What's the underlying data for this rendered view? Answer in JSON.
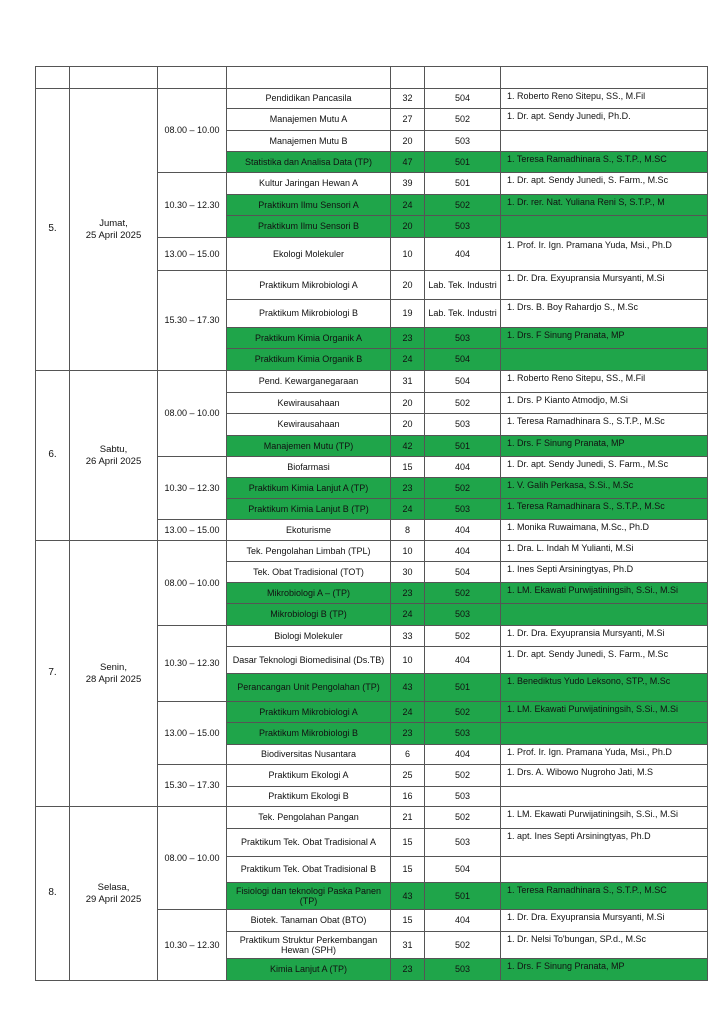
{
  "highlight_color": "#1fa54a",
  "schedule": [
    {
      "no": "5.",
      "day": "Jumat,",
      "date": "25 April 2025",
      "slots": [
        {
          "time": "08.00 – 10.00",
          "courses": [
            {
              "name": "Pendidikan Pancasila",
              "students": "32",
              "room": "504",
              "lecturer": "1. Roberto Reno Sitepu, SS., M.Fil",
              "highlight": false
            },
            {
              "name": "Manajemen Mutu A",
              "students": "27",
              "room": "502",
              "lecturer": "1. Dr. apt. Sendy Junedi, Ph.D.",
              "highlight": false
            },
            {
              "name": "Manajemen Mutu B",
              "students": "20",
              "room": "503",
              "lecturer": "",
              "highlight": false
            },
            {
              "name": "Statistika dan Analisa Data (TP)",
              "students": "47",
              "room": "501",
              "lecturer": "1. Teresa Ramadhinara S., S.T.P., M.SC",
              "highlight": true
            }
          ]
        },
        {
          "time": "10.30 – 12.30",
          "courses": [
            {
              "name": "Kultur Jaringan Hewan A",
              "students": "39",
              "room": "501",
              "lecturer": "1. Dr. apt. Sendy Junedi, S. Farm., M.Sc",
              "highlight": false
            },
            {
              "name": "Praktikum Ilmu Sensori A",
              "students": "24",
              "room": "502",
              "lecturer": "1. Dr. rer. Nat. Yuliana Reni S, S.T.P., M",
              "highlight": true
            },
            {
              "name": "Praktikum Ilmu Sensori B",
              "students": "20",
              "room": "503",
              "lecturer": "",
              "highlight": true
            }
          ]
        },
        {
          "time": "13.00 – 15.00",
          "courses": [
            {
              "name": "Ekologi Molekuler",
              "students": "10",
              "room": "404",
              "lecturer": "1. Prof. Ir. Ign. Pramana Yuda, Msi., Ph.D",
              "highlight": false
            }
          ]
        },
        {
          "time": "15.30 – 17.30",
          "courses": [
            {
              "name": "Praktikum Mikrobiologi A",
              "students": "20",
              "room": "Lab. Tek. Industri",
              "lecturer": "1. Dr. Dra. Exyupransia Mursyanti, M.Si",
              "highlight": false
            },
            {
              "name": "Praktikum Mikrobiologi B",
              "students": "19",
              "room": "Lab. Tek. Industri",
              "lecturer": "1. Drs. B. Boy Rahardjo S., M.Sc",
              "highlight": false
            },
            {
              "name": "Praktikum Kimia Organik A",
              "students": "23",
              "room": "503",
              "lecturer": "1. Drs. F Sinung Pranata, MP",
              "highlight": true
            },
            {
              "name": "Praktikum Kimia Organik B",
              "students": "24",
              "room": "504",
              "lecturer": "",
              "highlight": true
            }
          ]
        }
      ]
    },
    {
      "no": "6.",
      "day": "Sabtu,",
      "date": "26 April 2025",
      "slots": [
        {
          "time": "08.00 – 10.00",
          "courses": [
            {
              "name": "Pend. Kewarganegaraan",
              "students": "31",
              "room": "504",
              "lecturer": "1. Roberto Reno Sitepu, SS., M.Fil",
              "highlight": false
            },
            {
              "name": "Kewirausahaan",
              "students": "20",
              "room": "502",
              "lecturer": "1. Drs. P Kianto Atmodjo, M.Si",
              "highlight": false
            },
            {
              "name": "Kewirausahaan",
              "students": "20",
              "room": "503",
              "lecturer": "1. Teresa Ramadhinara S., S.T.P.,  M.Sc",
              "highlight": false
            },
            {
              "name": "Manajemen Mutu (TP)",
              "students": "42",
              "room": "501",
              "lecturer": "1. Drs. F Sinung Pranata, MP",
              "highlight": true
            }
          ]
        },
        {
          "time": "10.30 – 12.30",
          "courses": [
            {
              "name": "Biofarmasi",
              "students": "15",
              "room": "404",
              "lecturer": "1. Dr. apt. Sendy Junedi, S. Farm., M.Sc",
              "highlight": false
            },
            {
              "name": "Praktikum Kimia Lanjut A (TP)",
              "students": "23",
              "room": "502",
              "lecturer": "1. V. Galih Perkasa, S.Si., M.Sc",
              "highlight": true
            },
            {
              "name": "Praktikum Kimia Lanjut B (TP)",
              "students": "24",
              "room": "503",
              "lecturer": "1. Teresa Ramadhinara S., S.T.P.,  M.Sc",
              "highlight": true
            }
          ]
        },
        {
          "time": "13.00 – 15.00",
          "courses": [
            {
              "name": "Ekoturisme",
              "students": "8",
              "room": "404",
              "lecturer": "1. Monika Ruwaimana, M.Sc., Ph.D",
              "highlight": false
            }
          ]
        }
      ]
    },
    {
      "no": "7.",
      "day": "Senin,",
      "date": "28 April 2025",
      "slots": [
        {
          "time": "08.00 – 10.00",
          "courses": [
            {
              "name": "Tek. Pengolahan Limbah (TPL)",
              "students": "10",
              "room": "404",
              "lecturer": "1. Dra. L. Indah M Yulianti, M.Si",
              "highlight": false
            },
            {
              "name": "Tek. Obat Tradisional (TOT)",
              "students": "30",
              "room": "504",
              "lecturer": "1. Ines Septi Arsiningtyas, Ph.D",
              "highlight": false
            },
            {
              "name": "Mikrobiologi A – (TP)",
              "students": "23",
              "room": "502",
              "lecturer": "1. LM. Ekawati Purwijatiningsih, S.Si., M.Si",
              "highlight": true
            },
            {
              "name": "Mikrobiologi B (TP)",
              "students": "24",
              "room": "503",
              "lecturer": "",
              "highlight": true
            }
          ]
        },
        {
          "time": "10.30 – 12.30",
          "courses": [
            {
              "name": "Biologi Molekuler",
              "students": "33",
              "room": "502",
              "lecturer": "1. Dr. Dra. Exyupransia Mursyanti, M.Si",
              "highlight": false
            },
            {
              "name": "Dasar Teknologi Biomedisinal (Ds.TB)",
              "students": "10",
              "room": "404",
              "lecturer": "1. Dr. apt. Sendy Junedi, S. Farm., M.Sc",
              "highlight": false
            },
            {
              "name": "Perancangan Unit Pengolahan (TP)",
              "students": "43",
              "room": "501",
              "lecturer": "1. Benediktus Yudo Leksono, STP., M.Sc",
              "highlight": true
            }
          ]
        },
        {
          "time": "13.00 – 15.00",
          "courses": [
            {
              "name": "Praktikum Mikrobiologi A",
              "students": "24",
              "room": "502",
              "lecturer": "1. LM. Ekawati Purwijatiningsih, S.Si., M.Si",
              "highlight": true
            },
            {
              "name": "Praktikum Mikrobiologi B",
              "students": "23",
              "room": "503",
              "lecturer": "",
              "highlight": true
            },
            {
              "name": "Biodiversitas Nusantara",
              "students": "6",
              "room": "404",
              "lecturer": "1. Prof. Ir. Ign. Pramana Yuda, Msi., Ph.D",
              "highlight": false
            }
          ]
        },
        {
          "time": "15.30 – 17.30",
          "courses": [
            {
              "name": "Praktikum Ekologi A",
              "students": "25",
              "room": "502",
              "lecturer": "1. Drs. A. Wibowo Nugroho Jati, M.S",
              "highlight": false
            },
            {
              "name": "Praktikum Ekologi B",
              "students": "16",
              "room": "503",
              "lecturer": "",
              "highlight": false
            }
          ]
        }
      ]
    },
    {
      "no": "8.",
      "day": "Selasa,",
      "date": "29 April 2025",
      "slots": [
        {
          "time": "08.00 – 10.00",
          "courses": [
            {
              "name": "Tek. Pengolahan Pangan",
              "students": "21",
              "room": "502",
              "lecturer": "1. LM. Ekawati Purwijatiningsih, S.Si., M.Si",
              "highlight": false
            },
            {
              "name": "Praktikum Tek. Obat Tradisional A",
              "students": "15",
              "room": "503",
              "lecturer": "1. apt. Ines Septi Arsiningtyas, Ph.D",
              "highlight": false
            },
            {
              "name": "Praktikum Tek. Obat Tradisional B",
              "students": "15",
              "room": "504",
              "lecturer": "",
              "highlight": false
            },
            {
              "name": "Fisiologi dan teknologi Paska Panen (TP)",
              "students": "43",
              "room": "501",
              "lecturer": "1. Teresa Ramadhinara S., S.T.P., M.SC",
              "highlight": true
            }
          ]
        },
        {
          "time": "10.30 – 12.30",
          "courses": [
            {
              "name": "Biotek. Tanaman Obat (BTO)",
              "students": "15",
              "room": "404",
              "lecturer": "1. Dr. Dra. Exyupransia Mursyanti, M.Si",
              "highlight": false
            },
            {
              "name": "Praktikum Struktur Perkembangan Hewan (SPH)",
              "students": "31",
              "room": "502",
              "lecturer": "1. Dr. Nelsi To'bungan, SP.d., M.Sc",
              "highlight": false
            },
            {
              "name": "Kimia Lanjut A (TP)",
              "students": "23",
              "room": "503",
              "lecturer": "1. Drs. F Sinung Pranata, MP",
              "highlight": true
            }
          ]
        }
      ]
    }
  ]
}
